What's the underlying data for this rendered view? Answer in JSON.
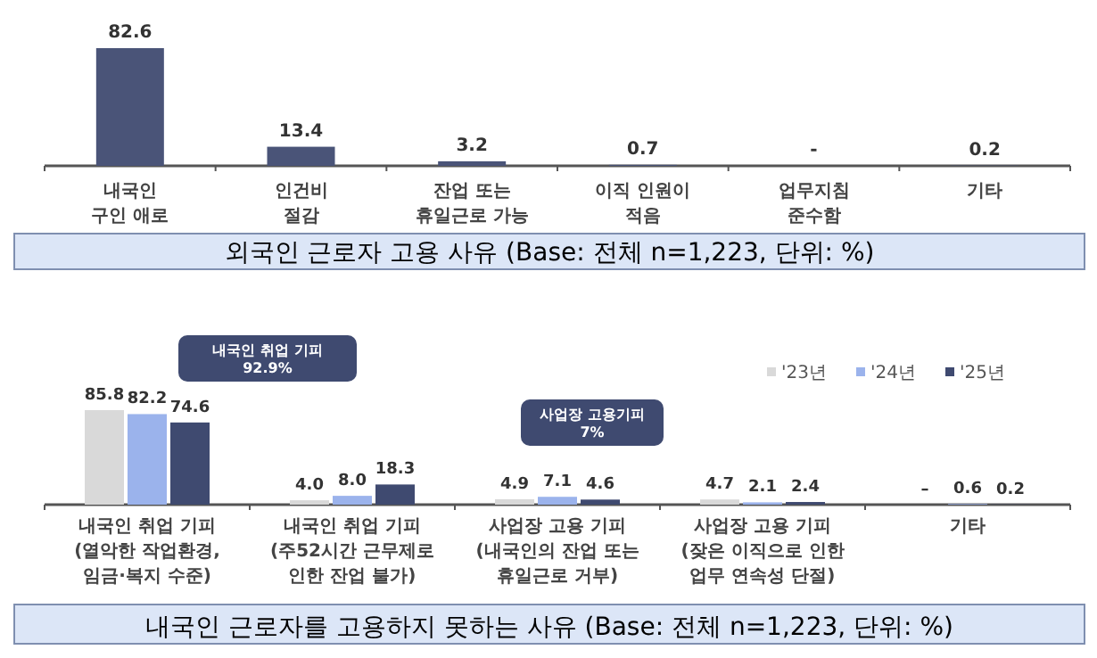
{
  "chart_data": [
    {
      "type": "bar",
      "title": "외국인 근로자 고용 사유 (Base: 전체 n=1,223, 단위: %)",
      "categories": [
        "내국인\n구인 애로",
        "인건비\n절감",
        "잔업 또는\n휴일근로 가능",
        "이직 인원이\n적음",
        "업무지침\n준수함",
        "기타"
      ],
      "values": [
        82.6,
        13.4,
        3.2,
        0.7,
        null,
        0.2
      ],
      "color": "#4a5478",
      "value_labels": [
        "82.6",
        "13.4",
        "3.2",
        "0.7",
        "-",
        "0.2"
      ]
    },
    {
      "type": "bar",
      "title": "내국인 근로자를 고용하지 못하는 사유 (Base: 전체 n=1,223, 단위: %)",
      "categories": [
        "내국인 취업 기피\n(열악한 작업환경,\n임금·복지 수준)",
        "내국인 취업 기피\n(주52시간 근무제로\n인한 잔업 불가)",
        "사업장 고용 기피\n(내국인의 잔업 또는\n휴일근로 거부)",
        "사업장 고용 기피\n(잦은 이직으로 인한\n업무 연속성 단절)",
        "기타"
      ],
      "series": [
        {
          "name": "'23년",
          "color": "#d9d9d9",
          "values": [
            85.8,
            4.0,
            4.9,
            4.7,
            null
          ],
          "value_labels": [
            "85.8",
            "4.0",
            "4.9",
            "4.7",
            "–"
          ]
        },
        {
          "name": "'24년",
          "color": "#9bb3ec",
          "values": [
            82.2,
            8.0,
            7.1,
            2.1,
            0.6
          ],
          "value_labels": [
            "82.2",
            "8.0",
            "7.1",
            "2.1",
            "0.6"
          ]
        },
        {
          "name": "'25년",
          "color": "#3f4a70",
          "values": [
            74.6,
            18.3,
            4.6,
            2.4,
            0.2
          ],
          "value_labels": [
            "74.6",
            "18.3",
            "4.6",
            "2.4",
            "0.2"
          ]
        }
      ],
      "legend": "top right",
      "annotations": [
        "내국인 취업 기피\n92.9%",
        "사업장 고용기피\n7%"
      ]
    }
  ]
}
